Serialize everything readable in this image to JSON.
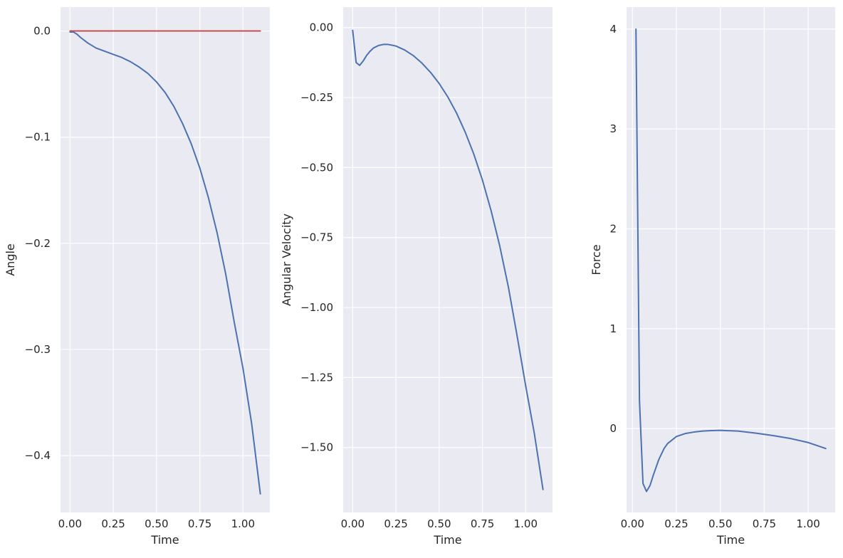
{
  "chart_data": [
    {
      "type": "line",
      "xlabel": "Time",
      "ylabel": "Angle",
      "xlim": [
        -0.055,
        1.155
      ],
      "ylim": [
        -0.4535,
        0.0225
      ],
      "x_ticks": [
        0.0,
        0.25,
        0.5,
        0.75,
        1.0
      ],
      "x_tick_labels": [
        "0.00",
        "0.25",
        "0.50",
        "0.75",
        "1.00"
      ],
      "y_ticks": [
        0.0,
        -0.1,
        -0.2,
        -0.3,
        -0.4
      ],
      "y_tick_labels": [
        "0.0",
        "−0.1",
        "−0.2",
        "−0.3",
        "−0.4"
      ],
      "grid": true,
      "series": [
        {
          "color": "#4c72b0",
          "x": [
            0.0,
            0.02,
            0.04,
            0.06,
            0.1,
            0.15,
            0.2,
            0.25,
            0.3,
            0.35,
            0.4,
            0.45,
            0.5,
            0.55,
            0.6,
            0.65,
            0.7,
            0.75,
            0.8,
            0.85,
            0.9,
            0.95,
            1.0,
            1.05,
            1.1
          ],
          "y": [
            -0.001,
            -0.001,
            -0.003,
            -0.006,
            -0.011,
            -0.016,
            -0.019,
            -0.022,
            -0.025,
            -0.029,
            -0.034,
            -0.04,
            -0.048,
            -0.058,
            -0.071,
            -0.087,
            -0.106,
            -0.129,
            -0.157,
            -0.19,
            -0.229,
            -0.275,
            -0.318,
            -0.37,
            -0.436
          ]
        },
        {
          "color": "#c44e52",
          "x": [
            0.0,
            1.1
          ],
          "y": [
            0.0,
            0.0
          ]
        }
      ]
    },
    {
      "type": "line",
      "xlabel": "Time",
      "ylabel": "Angular Velocity",
      "xlim": [
        -0.055,
        1.155
      ],
      "ylim": [
        -1.732,
        0.073
      ],
      "x_ticks": [
        0.0,
        0.25,
        0.5,
        0.75,
        1.0
      ],
      "x_tick_labels": [
        "0.00",
        "0.25",
        "0.50",
        "0.75",
        "1.00"
      ],
      "y_ticks": [
        0.0,
        -0.25,
        -0.5,
        -0.75,
        -1.0,
        -1.25,
        -1.5
      ],
      "y_tick_labels": [
        "0.00",
        "−0.25",
        "−0.50",
        "−0.75",
        "−1.00",
        "−1.25",
        "−1.50"
      ],
      "grid": true,
      "series": [
        {
          "color": "#4c72b0",
          "x": [
            0.0,
            0.02,
            0.04,
            0.06,
            0.08,
            0.1,
            0.12,
            0.15,
            0.18,
            0.2,
            0.22,
            0.25,
            0.3,
            0.35,
            0.4,
            0.45,
            0.5,
            0.55,
            0.6,
            0.65,
            0.7,
            0.75,
            0.8,
            0.85,
            0.9,
            0.95,
            1.0,
            1.05,
            1.1
          ],
          "y": [
            -0.01,
            -0.125,
            -0.135,
            -0.12,
            -0.1,
            -0.085,
            -0.073,
            -0.064,
            -0.06,
            -0.06,
            -0.062,
            -0.066,
            -0.08,
            -0.1,
            -0.127,
            -0.16,
            -0.2,
            -0.248,
            -0.305,
            -0.373,
            -0.452,
            -0.545,
            -0.654,
            -0.78,
            -0.927,
            -1.1,
            -1.28,
            -1.45,
            -1.65
          ]
        }
      ]
    },
    {
      "type": "line",
      "xlabel": "Time",
      "ylabel": "Force",
      "xlim": [
        -0.0335,
        1.1535
      ],
      "ylim": [
        -0.84,
        4.22
      ],
      "x_ticks": [
        0.0,
        0.25,
        0.5,
        0.75,
        1.0
      ],
      "x_tick_labels": [
        "0.00",
        "0.25",
        "0.50",
        "0.75",
        "1.00"
      ],
      "y_ticks": [
        0,
        1,
        2,
        3,
        4
      ],
      "y_tick_labels": [
        "0",
        "1",
        "2",
        "3",
        "4"
      ],
      "grid": true,
      "series": [
        {
          "color": "#4c72b0",
          "x": [
            0.02,
            0.04,
            0.06,
            0.08,
            0.1,
            0.12,
            0.15,
            0.18,
            0.2,
            0.25,
            0.3,
            0.35,
            0.4,
            0.45,
            0.5,
            0.6,
            0.7,
            0.8,
            0.9,
            1.0,
            1.1
          ],
          "y": [
            4.0,
            0.28,
            -0.55,
            -0.63,
            -0.57,
            -0.46,
            -0.31,
            -0.2,
            -0.15,
            -0.08,
            -0.05,
            -0.035,
            -0.025,
            -0.02,
            -0.018,
            -0.025,
            -0.045,
            -0.07,
            -0.1,
            -0.14,
            -0.2
          ]
        }
      ]
    }
  ]
}
